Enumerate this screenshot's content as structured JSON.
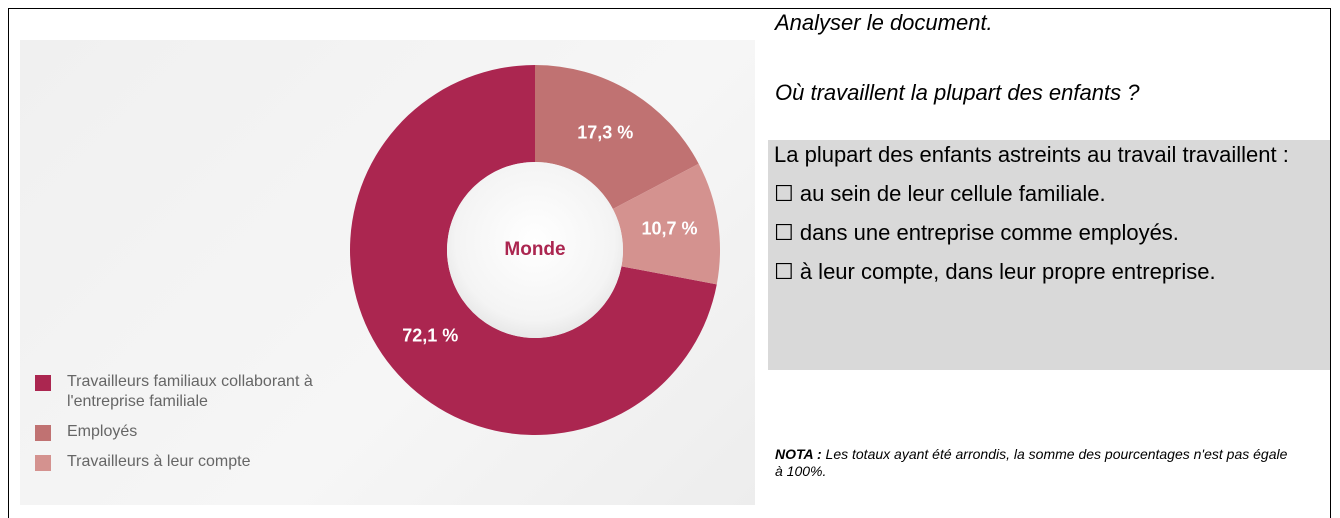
{
  "chart_data": {
    "type": "pie",
    "center_label": "Monde",
    "categories": [
      "Travailleurs familiaux collaborant à l'entreprise familiale",
      "Employés",
      "Travailleurs à leur compte"
    ],
    "values": [
      72.1,
      17.3,
      10.7
    ],
    "value_labels": [
      "72,1 %",
      "17,3 %",
      "10,7 %"
    ],
    "colors": [
      "#ab2650",
      "#c07272",
      "#d4928f"
    ],
    "legend": "bottom left"
  },
  "document": {
    "instruction": "Analyser le document.",
    "question": "Où travaillent la plupart des enfants ?",
    "answer_intro": "La plupart des enfants astreints au travail travaillent :",
    "options": [
      "☐ au sein de leur cellule familiale.",
      "☐ dans une entreprise comme employés.",
      "☐ à leur compte, dans leur propre entreprise."
    ],
    "nota_label": "NOTA :",
    "nota_lines": [
      "Les totaux ayant été arrondis, la somme des pourcentages n'est pas égale",
      "à 100%."
    ]
  }
}
